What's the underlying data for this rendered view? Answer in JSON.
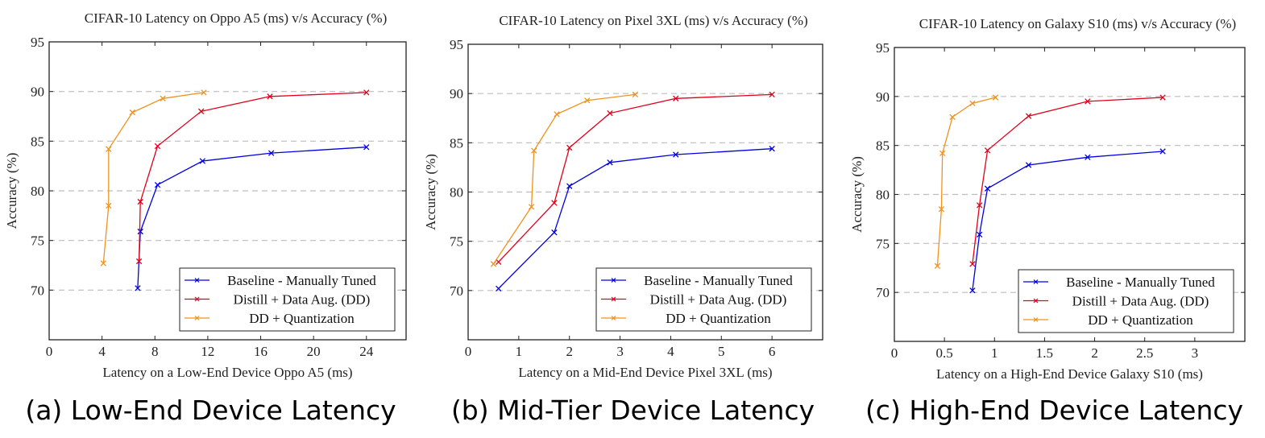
{
  "chart_data": [
    {
      "type": "line",
      "title": "CIFAR-10 Latency on Oppo A5 (ms) v/s Accuracy (%)",
      "xlabel": "Latency on a Low-End Device Oppo A5 (ms)",
      "ylabel": "Accuracy (%)",
      "caption": "(a) Low-End Device Latency",
      "xlim": [
        0,
        27
      ],
      "ylim": [
        65,
        95
      ],
      "xticks": [
        0,
        4,
        8,
        12,
        16,
        20,
        24
      ],
      "yticks": [
        70,
        75,
        80,
        85,
        90,
        95
      ],
      "grid": "horizontal dashed",
      "legend": "bottom-right",
      "series": [
        {
          "name": "Baseline - Manually Tuned",
          "color": "#0000e0",
          "x": [
            6.7,
            6.9,
            8.2,
            11.6,
            16.8,
            24.0
          ],
          "y": [
            70.2,
            75.9,
            80.6,
            83.0,
            83.8,
            84.4
          ]
        },
        {
          "name": "Distill + Data Aug. (DD)",
          "color": "#e0001b",
          "x": [
            6.8,
            6.9,
            8.2,
            11.5,
            16.7,
            24.0
          ],
          "y": [
            72.9,
            78.9,
            84.5,
            88.0,
            89.5,
            89.9
          ]
        },
        {
          "name": "DD + Quantization",
          "color": "#f0921e",
          "x": [
            4.1,
            4.5,
            4.5,
            6.3,
            8.6,
            11.7
          ],
          "y": [
            72.7,
            78.5,
            84.2,
            87.9,
            89.3,
            89.9
          ]
        }
      ]
    },
    {
      "type": "line",
      "title": "CIFAR-10 Latency on Pixel 3XL (ms) v/s Accuracy (%)",
      "xlabel": "Latency on a Mid-End Device Pixel 3XL (ms)",
      "ylabel": "Accuracy (%)",
      "caption": "(b) Mid-Tier Device Latency",
      "xlim": [
        0,
        7
      ],
      "ylim": [
        65,
        95
      ],
      "xticks": [
        0,
        1,
        2,
        3,
        4,
        5,
        6
      ],
      "yticks": [
        70,
        75,
        80,
        85,
        90,
        95
      ],
      "grid": "horizontal dashed",
      "legend": "bottom-right",
      "series": [
        {
          "name": "Baseline - Manually Tuned",
          "color": "#0000e0",
          "x": [
            0.6,
            1.7,
            2.0,
            2.8,
            4.1,
            6.0
          ],
          "y": [
            70.2,
            75.9,
            80.6,
            83.0,
            83.8,
            84.4
          ]
        },
        {
          "name": "Distill + Data Aug. (DD)",
          "color": "#e0001b",
          "x": [
            0.6,
            1.7,
            2.0,
            2.8,
            4.1,
            6.0
          ],
          "y": [
            72.9,
            78.9,
            84.5,
            88.0,
            89.5,
            89.9
          ]
        },
        {
          "name": "DD + Quantization",
          "color": "#f0921e",
          "x": [
            0.5,
            1.25,
            1.3,
            1.75,
            2.35,
            3.3
          ],
          "y": [
            72.7,
            78.5,
            84.2,
            87.9,
            89.3,
            89.9
          ]
        }
      ]
    },
    {
      "type": "line",
      "title": "CIFAR-10 Latency on Galaxy S10 (ms) v/s Accuracy (%)",
      "xlabel": "Latency on a High-End Device Galaxy S10 (ms)",
      "ylabel": "Accuracy (%)",
      "caption": "(c) High-End Device Latency",
      "xlim": [
        0,
        3.5
      ],
      "ylim": [
        65,
        95
      ],
      "xticks": [
        0,
        0.5,
        1,
        1.5,
        2,
        2.5,
        3
      ],
      "yticks": [
        70,
        75,
        80,
        85,
        90,
        95
      ],
      "grid": "horizontal dashed",
      "legend": "bottom-right",
      "series": [
        {
          "name": "Baseline - Manually Tuned",
          "color": "#0000e0",
          "x": [
            0.78,
            0.85,
            0.93,
            1.34,
            1.93,
            2.68
          ],
          "y": [
            70.2,
            75.9,
            80.6,
            83.0,
            83.8,
            84.4
          ]
        },
        {
          "name": "Distill + Data Aug. (DD)",
          "color": "#e0001b",
          "x": [
            0.78,
            0.85,
            0.93,
            1.34,
            1.93,
            2.68
          ],
          "y": [
            72.9,
            78.9,
            84.5,
            88.0,
            89.5,
            89.9
          ]
        },
        {
          "name": "DD + Quantization",
          "color": "#f0921e",
          "x": [
            0.43,
            0.47,
            0.48,
            0.58,
            0.78,
            1.01
          ],
          "y": [
            72.7,
            78.5,
            84.2,
            87.9,
            89.3,
            89.9
          ]
        }
      ]
    }
  ]
}
